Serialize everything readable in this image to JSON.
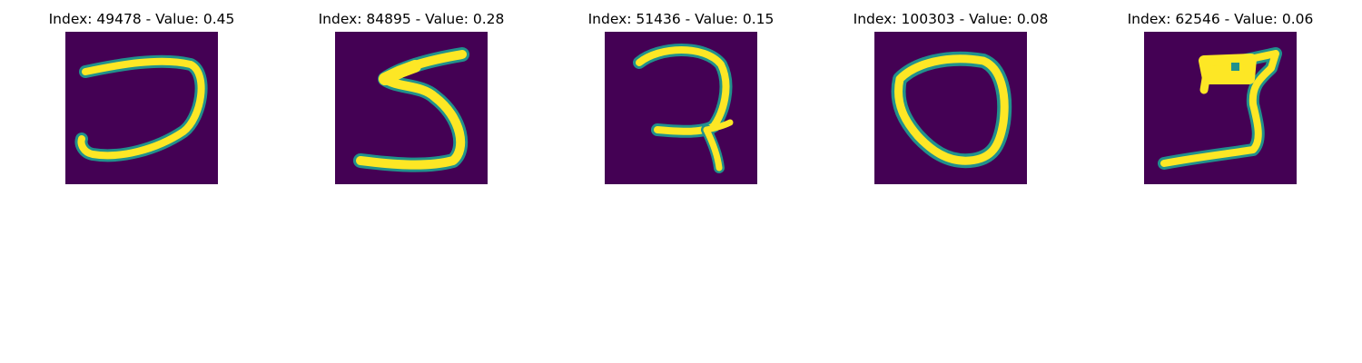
{
  "figure": {
    "colormap_dark": "#440154",
    "colormap_mid": "#21918c",
    "colormap_bright": "#fde725",
    "panels": [
      {
        "title": "Index: 49478 - Value: 0.45",
        "image": "handwritten digit-like stroke shaped like a reversed C / hook"
      },
      {
        "title": "Index: 84895 - Value: 0.28",
        "image": "handwritten digit 5"
      },
      {
        "title": "Index: 51436 - Value: 0.15",
        "image": "handwritten glyph resembling a 2 with a crossed stem"
      },
      {
        "title": "Index: 100303 - Value: 0.08",
        "image": "handwritten digit 0"
      },
      {
        "title": "Index: 62546 - Value: 0.06",
        "image": "handwritten glyph resembling a 5 / S shape"
      }
    ]
  }
}
